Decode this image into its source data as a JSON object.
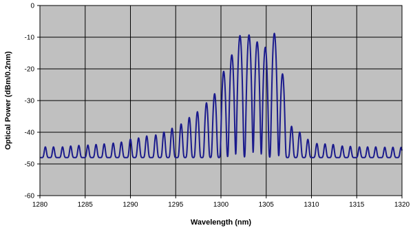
{
  "chart_data": {
    "type": "line",
    "title": "",
    "xlabel": "Wavelength (nm)",
    "ylabel": "Optical Power (dBm/0.2nm)",
    "xlim": [
      1280,
      1320
    ],
    "ylim": [
      -60,
      0
    ],
    "x_ticks": [
      1280,
      1285,
      1290,
      1295,
      1300,
      1305,
      1310,
      1315,
      1320
    ],
    "y_ticks": [
      0,
      -10,
      -20,
      -30,
      -40,
      -50,
      -60
    ],
    "x_tick_labels": [
      "1280",
      "1285",
      "1290",
      "1295",
      "1300",
      "1305",
      "1310",
      "1315",
      "1320"
    ],
    "y_tick_labels": [
      "0",
      "-10",
      "-20",
      "-30",
      "-40",
      "-50",
      "-60"
    ],
    "grid": true,
    "legend": "none",
    "colors": {
      "plot_background": "#c0c0c0",
      "line": "#1a1a8c",
      "grid": "#000000"
    },
    "noise_floor_dbm": -48,
    "series": [
      {
        "peaks_nm": [
          1280.6,
          1281.5,
          1282.5,
          1283.4,
          1284.3,
          1285.3,
          1286.2,
          1287.1,
          1288.1,
          1289.0,
          1290.0,
          1290.9,
          1291.8,
          1292.8,
          1293.7,
          1294.6,
          1295.6,
          1296.5,
          1297.4,
          1298.4,
          1299.3,
          1300.3,
          1301.2,
          1302.1,
          1303.1,
          1304.0,
          1304.9,
          1305.9,
          1306.8,
          1307.8,
          1308.7,
          1309.6,
          1310.6,
          1311.5,
          1312.4,
          1313.4,
          1314.3,
          1315.3,
          1316.2,
          1317.1,
          1318.1,
          1319.0,
          1319.9
        ],
        "peaks_dbm": [
          -47.3,
          -47.3,
          -47.3,
          -46.8,
          -46.5,
          -46.3,
          -46.0,
          -45.7,
          -45.3,
          -44.8,
          -43.5,
          -43.0,
          -42.2,
          -41.8,
          -40.7,
          -39.3,
          -37.8,
          -35.6,
          -33.7,
          -30.8,
          -27.9,
          -20.8,
          -15.6,
          -9.5,
          -9.3,
          -11.5,
          -13.2,
          -8.8,
          -21.6,
          -38.6,
          -40.7,
          -43.6,
          -45.5,
          -45.7,
          -46.0,
          -46.8,
          -47.0,
          -47.3,
          -47.3,
          -47.3,
          -47.5,
          -47.5,
          -47.6
        ]
      }
    ]
  }
}
